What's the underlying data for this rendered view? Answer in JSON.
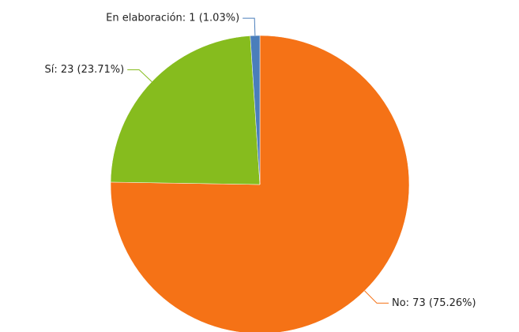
{
  "chart_data": {
    "type": "pie",
    "categories": [
      "No",
      "Sí",
      "En elaboración"
    ],
    "values": [
      73,
      23,
      1
    ],
    "value_labels": [
      "No: 73 (75.26%)",
      "Sí: 23 (23.71%)",
      "En elaboración: 1 (1.03%)"
    ],
    "colors": [
      "#f57216",
      "#86bc1e",
      "#4a7ebb"
    ]
  }
}
